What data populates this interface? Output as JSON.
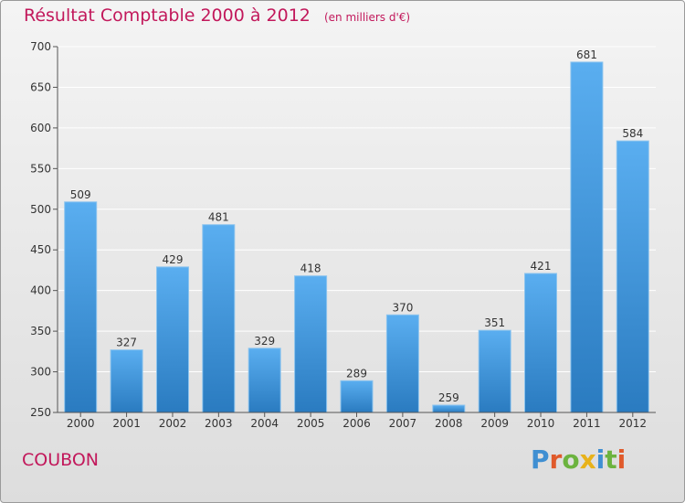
{
  "header": {
    "title": "Résultat Comptable 2000 à 2012",
    "subtitle": "(en milliers d'€)"
  },
  "commune": "COUBON",
  "logo": {
    "text": "Proxiti",
    "letter_colors": [
      "#3f8fd2",
      "#e05a2b",
      "#6cb33f",
      "#e8b21a",
      "#3f8fd2",
      "#6cb33f",
      "#e05a2b"
    ]
  },
  "colors": {
    "title": "#c2185b",
    "bar_top": "#5aaef0",
    "bar_bottom": "#2a7bc0",
    "grid": "#ffffff",
    "axis": "#555555"
  },
  "chart_data": {
    "type": "bar",
    "title": "Résultat Comptable 2000 à 2012",
    "subtitle": "(en milliers d'€)",
    "categories": [
      "2000",
      "2001",
      "2002",
      "2003",
      "2004",
      "2005",
      "2006",
      "2007",
      "2008",
      "2009",
      "2010",
      "2011",
      "2012"
    ],
    "values": [
      509,
      327,
      429,
      481,
      329,
      418,
      289,
      370,
      259,
      351,
      421,
      681,
      584
    ],
    "ylim": [
      250,
      700
    ],
    "yticks": [
      250,
      300,
      350,
      400,
      450,
      500,
      550,
      600,
      650,
      700
    ],
    "grid": true,
    "data_labels": true
  }
}
